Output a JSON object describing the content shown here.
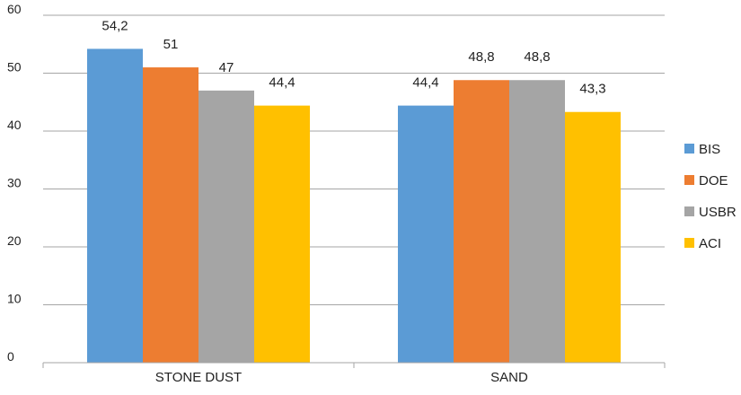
{
  "chart_data": {
    "type": "bar",
    "categories": [
      "STONE DUST",
      "SAND"
    ],
    "series": [
      {
        "name": "BIS",
        "color": "#5b9bd5",
        "values": [
          54.2,
          44.4
        ],
        "labels": [
          "54,2",
          "44,4"
        ]
      },
      {
        "name": "DOE",
        "color": "#ed7d31",
        "values": [
          51,
          48.8
        ],
        "labels": [
          "51",
          "48,8"
        ]
      },
      {
        "name": "USBR",
        "color": "#a5a5a5",
        "values": [
          47,
          48.8
        ],
        "labels": [
          "47",
          "48,8"
        ]
      },
      {
        "name": "ACI",
        "color": "#ffc000",
        "values": [
          44.4,
          43.3
        ],
        "labels": [
          "44,4",
          "43,3"
        ]
      }
    ],
    "ylim": [
      0,
      60
    ],
    "yticks": [
      "0",
      "10",
      "20",
      "30",
      "40",
      "50",
      "60"
    ],
    "grid": true,
    "legend_position": "right",
    "title": "",
    "xlabel": "",
    "ylabel": ""
  }
}
